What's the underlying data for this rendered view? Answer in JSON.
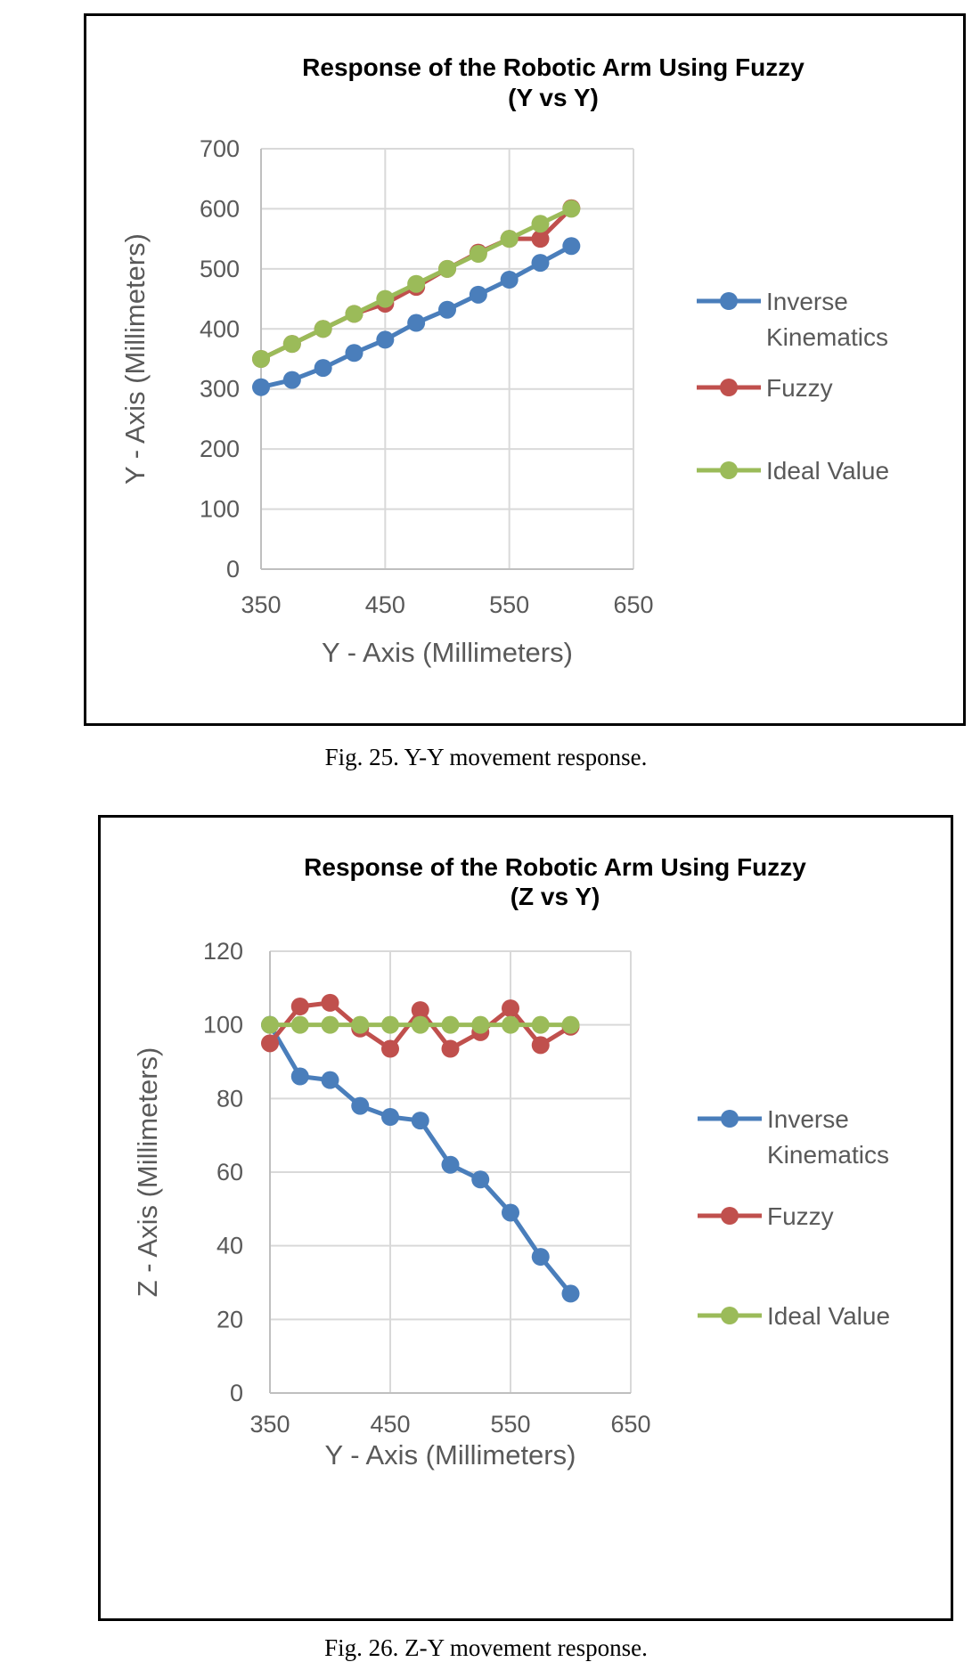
{
  "figures": [
    {
      "caption": "Fig. 25.  Y-Y movement response.",
      "chart_data": {
        "type": "line",
        "title": [
          "Response of the Robotic Arm Using Fuzzy",
          "(Y vs Y)"
        ],
        "xlabel": "Y - Axis (Millimeters)",
        "ylabel": "Y - Axis (Millimeters)",
        "xlim": [
          350,
          650
        ],
        "ylim": [
          0,
          700
        ],
        "xticks": [
          350,
          450,
          550,
          650
        ],
        "yticks": [
          0,
          100,
          200,
          300,
          400,
          500,
          600,
          700
        ],
        "grid": true,
        "legend_position": "right",
        "x": [
          350,
          375,
          400,
          425,
          450,
          475,
          500,
          525,
          550,
          575,
          600
        ],
        "series": [
          {
            "name": [
              "Inverse",
              "Kinematics"
            ],
            "color": "#4a7ebb",
            "values": [
              303,
              315,
              335,
              360,
              382,
              410,
              432,
              457,
              482,
              510,
              538
            ]
          },
          {
            "name": [
              "Fuzzy"
            ],
            "color": "#c0504d",
            "values": [
              350,
              375,
              400,
              425,
              442,
              470,
              500,
              527,
              550,
              550,
              601
            ]
          },
          {
            "name": [
              "Ideal Value"
            ],
            "color": "#9bbb59",
            "values": [
              350,
              375,
              400,
              425,
              450,
              475,
              500,
              525,
              550,
              575,
              600
            ]
          }
        ]
      }
    },
    {
      "caption": "Fig. 26.  Z-Y movement response.",
      "chart_data": {
        "type": "line",
        "title": [
          "Response of the Robotic Arm Using Fuzzy",
          "(Z vs Y)"
        ],
        "xlabel": "Y - Axis (Millimeters)",
        "ylabel": "Z - Axis (Millimeters)",
        "xlim": [
          350,
          650
        ],
        "ylim": [
          0,
          120
        ],
        "xticks": [
          350,
          450,
          550,
          650
        ],
        "yticks": [
          0,
          20,
          40,
          60,
          80,
          100,
          120
        ],
        "grid": true,
        "legend_position": "right",
        "x": [
          350,
          375,
          400,
          425,
          450,
          475,
          500,
          525,
          550,
          575,
          600
        ],
        "series": [
          {
            "name": [
              "Inverse",
              "Kinematics"
            ],
            "color": "#4a7ebb",
            "values": [
              100,
              86,
              85,
              78,
              75,
              74,
              62,
              58,
              49,
              37,
              27
            ]
          },
          {
            "name": [
              "Fuzzy"
            ],
            "color": "#c0504d",
            "values": [
              95,
              105,
              106,
              99,
              93.5,
              104,
              93.5,
              98,
              104.5,
              94.5,
              99.5
            ]
          },
          {
            "name": [
              "Ideal Value"
            ],
            "color": "#9bbb59",
            "values": [
              100,
              100,
              100,
              100,
              100,
              100,
              100,
              100,
              100,
              100,
              100
            ]
          }
        ]
      }
    }
  ]
}
